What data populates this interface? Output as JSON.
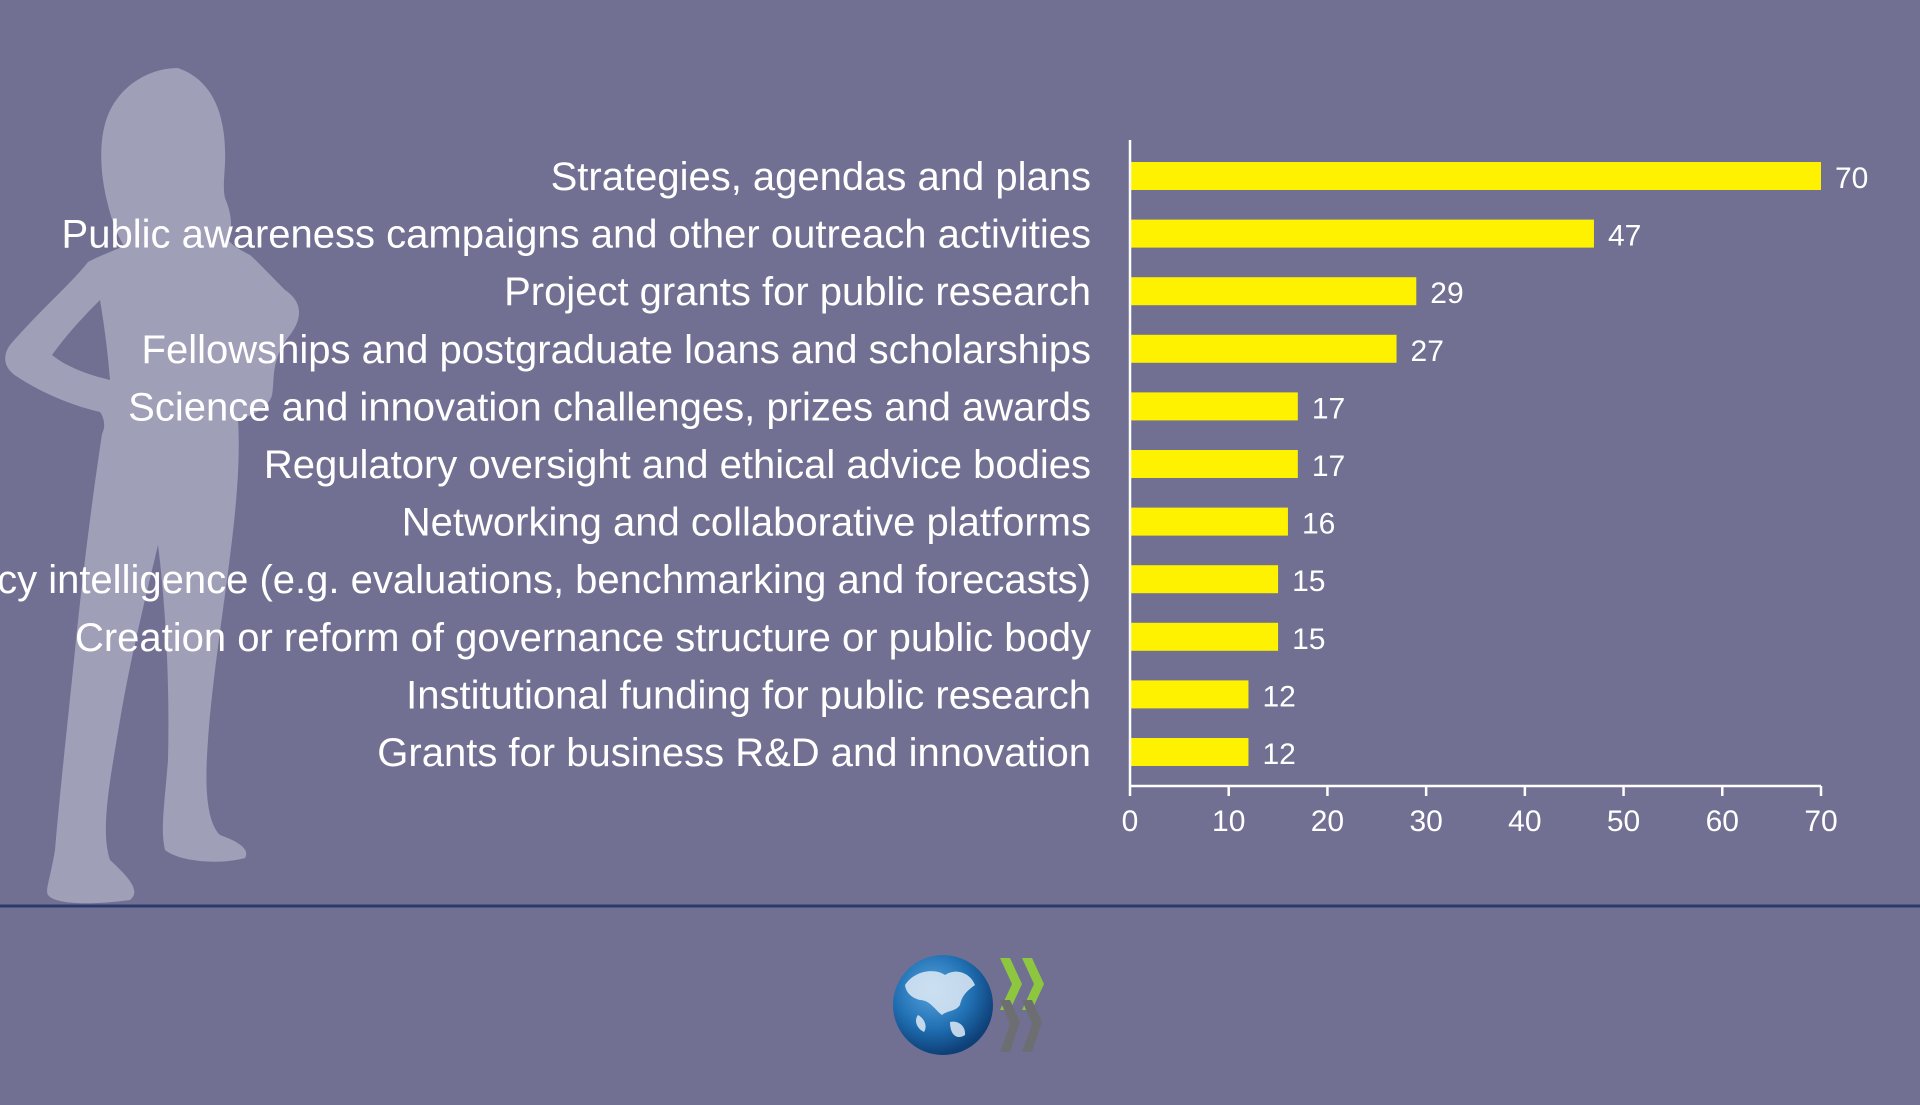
{
  "colors": {
    "background": "#717093",
    "bar": "#fff200",
    "axis": "#ffffff",
    "text": "#ffffff",
    "silhouette": "#a09fb8",
    "separator": "#2a3a6a",
    "logo_globe": "#1f6fb2",
    "logo_chevron_green": "#8dc63f",
    "logo_chevron_gray": "#6d6e71"
  },
  "decorations": {
    "silhouette": "woman-standing-silhouette-icon",
    "logo": "oecd-logo-icon"
  },
  "chart_data": {
    "type": "bar",
    "orientation": "horizontal",
    "categories": [
      "Strategies, agendas and plans",
      "Public awareness campaigns and other outreach activities",
      "Project grants for public research",
      "Fellowships and postgraduate loans and scholarships",
      "Science and innovation challenges, prizes and awards",
      "Regulatory oversight and ethical advice bodies",
      "Networking and collaborative platforms",
      "Policy intelligence (e.g. evaluations, benchmarking and forecasts)",
      "Creation or reform of governance structure or public body",
      "Institutional funding for public research",
      "Grants for business R&D and innovation"
    ],
    "values": [
      70,
      47,
      29,
      27,
      17,
      17,
      16,
      15,
      15,
      12,
      12
    ],
    "data_labels": [
      "70",
      "47",
      "29",
      "27",
      "17",
      "17",
      "16",
      "15",
      "15",
      "12",
      "12"
    ],
    "xlim": [
      0,
      70
    ],
    "xticks": [
      0,
      10,
      20,
      30,
      40,
      50,
      60,
      70
    ],
    "xtick_labels": [
      "0",
      "10",
      "20",
      "30",
      "40",
      "50",
      "60",
      "70"
    ],
    "grid": false,
    "legend": "none"
  }
}
